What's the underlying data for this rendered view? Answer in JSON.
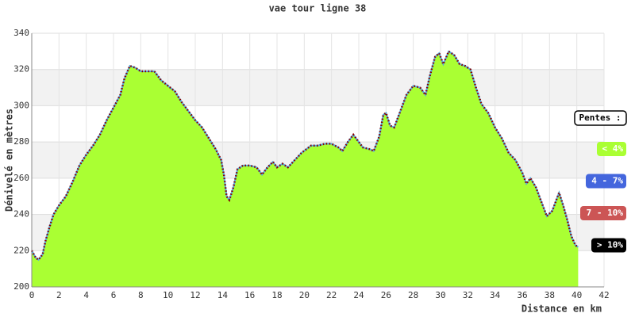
{
  "chart_data": {
    "type": "area",
    "title": "vae tour ligne 38",
    "x_label": "Distance en km",
    "y_label": "Dénivelé en mètres",
    "x": [
      0,
      0.3,
      0.5,
      0.8,
      1,
      1.3,
      1.6,
      2,
      2.5,
      3,
      3.5,
      4,
      4.5,
      5,
      5.5,
      6,
      6.5,
      6.8,
      7.2,
      7.6,
      8,
      8.5,
      9,
      9.5,
      10,
      10.5,
      11,
      11.5,
      12,
      12.5,
      13,
      13.5,
      13.9,
      14.1,
      14.3,
      14.5,
      14.8,
      15.1,
      15.5,
      16,
      16.5,
      16.9,
      17.3,
      17.7,
      18,
      18.4,
      18.8,
      19.3,
      19.8,
      20.5,
      21,
      21.5,
      22,
      22.5,
      22.8,
      23.2,
      23.6,
      24,
      24.3,
      24.8,
      25.1,
      25.5,
      25.8,
      26,
      26.3,
      26.6,
      27,
      27.5,
      28,
      28.5,
      28.9,
      29.2,
      29.6,
      29.9,
      30.2,
      30.6,
      31,
      31.4,
      31.8,
      32.2,
      32.6,
      33,
      33.5,
      34,
      34.5,
      35,
      35.5,
      36,
      36.3,
      36.6,
      37,
      37.5,
      37.8,
      38.2,
      38.7,
      39,
      39.3,
      39.6,
      39.9,
      40.1
    ],
    "series": [
      {
        "color": "#aaff33",
        "line_color": "#55aadd",
        "values": [
          220,
          216,
          215,
          218,
          225,
          233,
          240,
          245,
          250,
          258,
          267,
          273,
          278,
          284,
          292,
          299,
          306,
          315,
          322,
          321,
          319,
          319,
          319,
          314,
          311,
          308,
          302,
          297,
          292,
          288,
          282,
          276,
          270,
          262,
          250,
          248,
          255,
          265,
          267,
          267,
          266,
          262,
          266,
          269,
          266,
          268,
          266,
          270,
          274,
          278,
          278,
          279,
          279,
          277,
          275,
          280,
          284,
          280,
          277,
          276,
          275,
          283,
          295,
          296,
          289,
          288,
          296,
          306,
          311,
          310,
          306,
          316,
          327,
          329,
          323,
          330,
          328,
          323,
          322,
          320,
          310,
          301,
          296,
          288,
          282,
          274,
          270,
          263,
          257,
          260,
          255,
          245,
          239,
          242,
          252,
          245,
          237,
          228,
          223,
          222
        ]
      }
    ],
    "xlim": [
      0,
      42
    ],
    "xticks": [
      0,
      2,
      4,
      6,
      8,
      10,
      12,
      14,
      16,
      18,
      20,
      22,
      24,
      26,
      28,
      30,
      32,
      34,
      36,
      38,
      40,
      42
    ],
    "ylim": [
      200,
      340
    ],
    "yticks": [
      200,
      220,
      240,
      260,
      280,
      300,
      320,
      340
    ],
    "grid": true,
    "legend": {
      "title": "Pentes :",
      "items": [
        {
          "label": "< 4%",
          "color": "#aaff33"
        },
        {
          "label": "4 - 7%",
          "color": "#4466dd"
        },
        {
          "label": "7 - 10%",
          "color": "#cc5555"
        },
        {
          "label": "> 10%",
          "color": "#000000"
        }
      ]
    }
  }
}
